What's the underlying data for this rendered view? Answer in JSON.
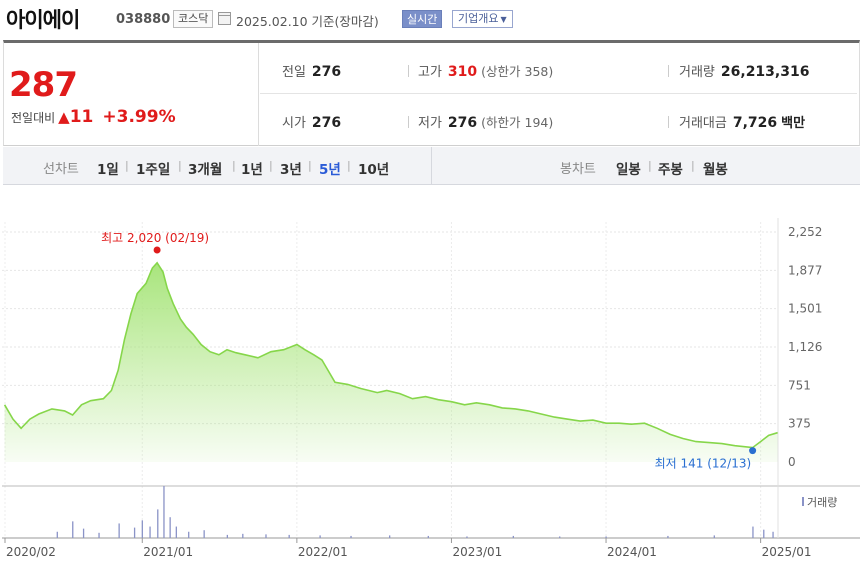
{
  "header": {
    "stock_name": "아이에이",
    "stock_code": "038880",
    "market": "코스닥",
    "base_date": "2025.02.10 기준(장마감)",
    "realtime_label": "실시간",
    "company_label": "기업개요"
  },
  "summary": {
    "current_price": "287",
    "change_label": "전일대비",
    "change_symbol": "▲",
    "change_amount": "11",
    "change_percent": "+3.99%",
    "prev_close_label": "전일",
    "prev_close": "276",
    "open_label": "시가",
    "open": "276",
    "high_label": "고가",
    "high": "310",
    "upper_limit": "(상한가 358)",
    "low_label": "저가",
    "low": "276",
    "lower_limit": "(하한가 194)",
    "volume_label": "거래량",
    "volume": "26,213,316",
    "amount_label": "거래대금",
    "amount": "7,726",
    "amount_unit": "백만"
  },
  "periods": {
    "line_label": "선차트",
    "line_items": [
      "1일",
      "1주일",
      "3개월",
      "1년",
      "3년",
      "5년",
      "10년"
    ],
    "active": "5년",
    "candle_label": "봉차트",
    "candle_items": [
      "일봉",
      "주봉",
      "월봉"
    ]
  },
  "colors": {
    "up": "#e01b1b",
    "line": "#86d64a",
    "fill_top": "#a9e57d",
    "low_marker": "#2a6fd1",
    "volume": "#8a93c7"
  },
  "chart_data": {
    "type": "area",
    "x_tick_labels": [
      "2020/02",
      "2021/01",
      "2022/01",
      "2023/01",
      "2024/01",
      "2025/01"
    ],
    "y_tick_labels": [
      "2,252",
      "1,877",
      "1,501",
      "1,126",
      "751",
      "375",
      "0"
    ],
    "ylim": [
      0,
      2252
    ],
    "grid": true,
    "legend": "거래량",
    "high_annotation": "최고 2,020 (02/19)",
    "low_annotation": "최저 141 (12/13)",
    "series": [
      {
        "x": [
          "2020-02-10",
          "2020-03-01",
          "2020-03-20",
          "2020-04-10",
          "2020-05-01",
          "2020-06-01",
          "2020-07-01",
          "2020-07-20",
          "2020-08-10",
          "2020-09-01",
          "2020-10-01",
          "2020-10-20",
          "2020-11-05",
          "2020-11-20",
          "2020-12-05",
          "2020-12-20",
          "2021-01-10",
          "2021-01-25",
          "2021-02-05",
          "2021-02-19",
          "2021-03-01",
          "2021-03-15",
          "2021-04-01",
          "2021-04-15",
          "2021-05-01",
          "2021-05-20",
          "2021-06-10",
          "2021-07-01",
          "2021-07-20",
          "2021-08-10",
          "2021-09-01",
          "2021-10-01",
          "2021-11-01",
          "2021-12-01",
          "2022-01-01",
          "2022-01-20",
          "2022-02-10",
          "2022-03-01",
          "2022-04-01",
          "2022-05-01",
          "2022-06-01",
          "2022-06-20",
          "2022-07-10",
          "2022-08-01",
          "2022-09-01",
          "2022-10-01",
          "2022-11-01",
          "2022-12-01",
          "2023-01-01",
          "2023-02-01",
          "2023-03-01",
          "2023-04-01",
          "2023-05-01",
          "2023-06-01",
          "2023-07-01",
          "2023-08-01",
          "2023-09-01",
          "2023-10-01",
          "2023-11-01",
          "2023-12-01",
          "2024-01-01",
          "2024-02-01",
          "2024-03-01",
          "2024-04-01",
          "2024-05-01",
          "2024-06-01",
          "2024-07-01",
          "2024-08-01",
          "2024-09-01",
          "2024-10-01",
          "2024-11-01",
          "2024-12-13",
          "2025-01-01",
          "2025-01-20",
          "2025-02-10"
        ],
        "values": [
          560,
          420,
          330,
          420,
          470,
          520,
          500,
          460,
          560,
          600,
          620,
          700,
          900,
          1200,
          1450,
          1650,
          1750,
          1900,
          1950,
          1860,
          1700,
          1550,
          1400,
          1320,
          1250,
          1150,
          1080,
          1050,
          1100,
          1070,
          1050,
          1020,
          1080,
          1100,
          1150,
          1100,
          1050,
          1000,
          780,
          760,
          720,
          700,
          680,
          700,
          670,
          620,
          640,
          610,
          590,
          560,
          580,
          560,
          530,
          520,
          500,
          470,
          440,
          420,
          400,
          410,
          380,
          380,
          370,
          380,
          330,
          270,
          230,
          200,
          190,
          180,
          160,
          141,
          200,
          260,
          287
        ]
      }
    ],
    "volume": [
      [
        2020.45,
        0.12
      ],
      [
        2020.55,
        0.32
      ],
      [
        2020.62,
        0.18
      ],
      [
        2020.72,
        0.1
      ],
      [
        2020.85,
        0.28
      ],
      [
        2020.95,
        0.2
      ],
      [
        2021.0,
        0.34
      ],
      [
        2021.05,
        0.22
      ],
      [
        2021.1,
        0.55
      ],
      [
        2021.14,
        1.0
      ],
      [
        2021.18,
        0.4
      ],
      [
        2021.22,
        0.22
      ],
      [
        2021.3,
        0.12
      ],
      [
        2021.4,
        0.15
      ],
      [
        2021.55,
        0.06
      ],
      [
        2021.65,
        0.08
      ],
      [
        2021.8,
        0.07
      ],
      [
        2021.95,
        0.06
      ],
      [
        2022.15,
        0.05
      ],
      [
        2022.35,
        0.04
      ],
      [
        2022.6,
        0.05
      ],
      [
        2022.85,
        0.04
      ],
      [
        2023.1,
        0.03
      ],
      [
        2023.4,
        0.04
      ],
      [
        2023.7,
        0.03
      ],
      [
        2024.0,
        0.03
      ],
      [
        2024.4,
        0.04
      ],
      [
        2024.7,
        0.05
      ],
      [
        2024.95,
        0.22
      ],
      [
        2025.02,
        0.16
      ],
      [
        2025.08,
        0.12
      ]
    ]
  }
}
